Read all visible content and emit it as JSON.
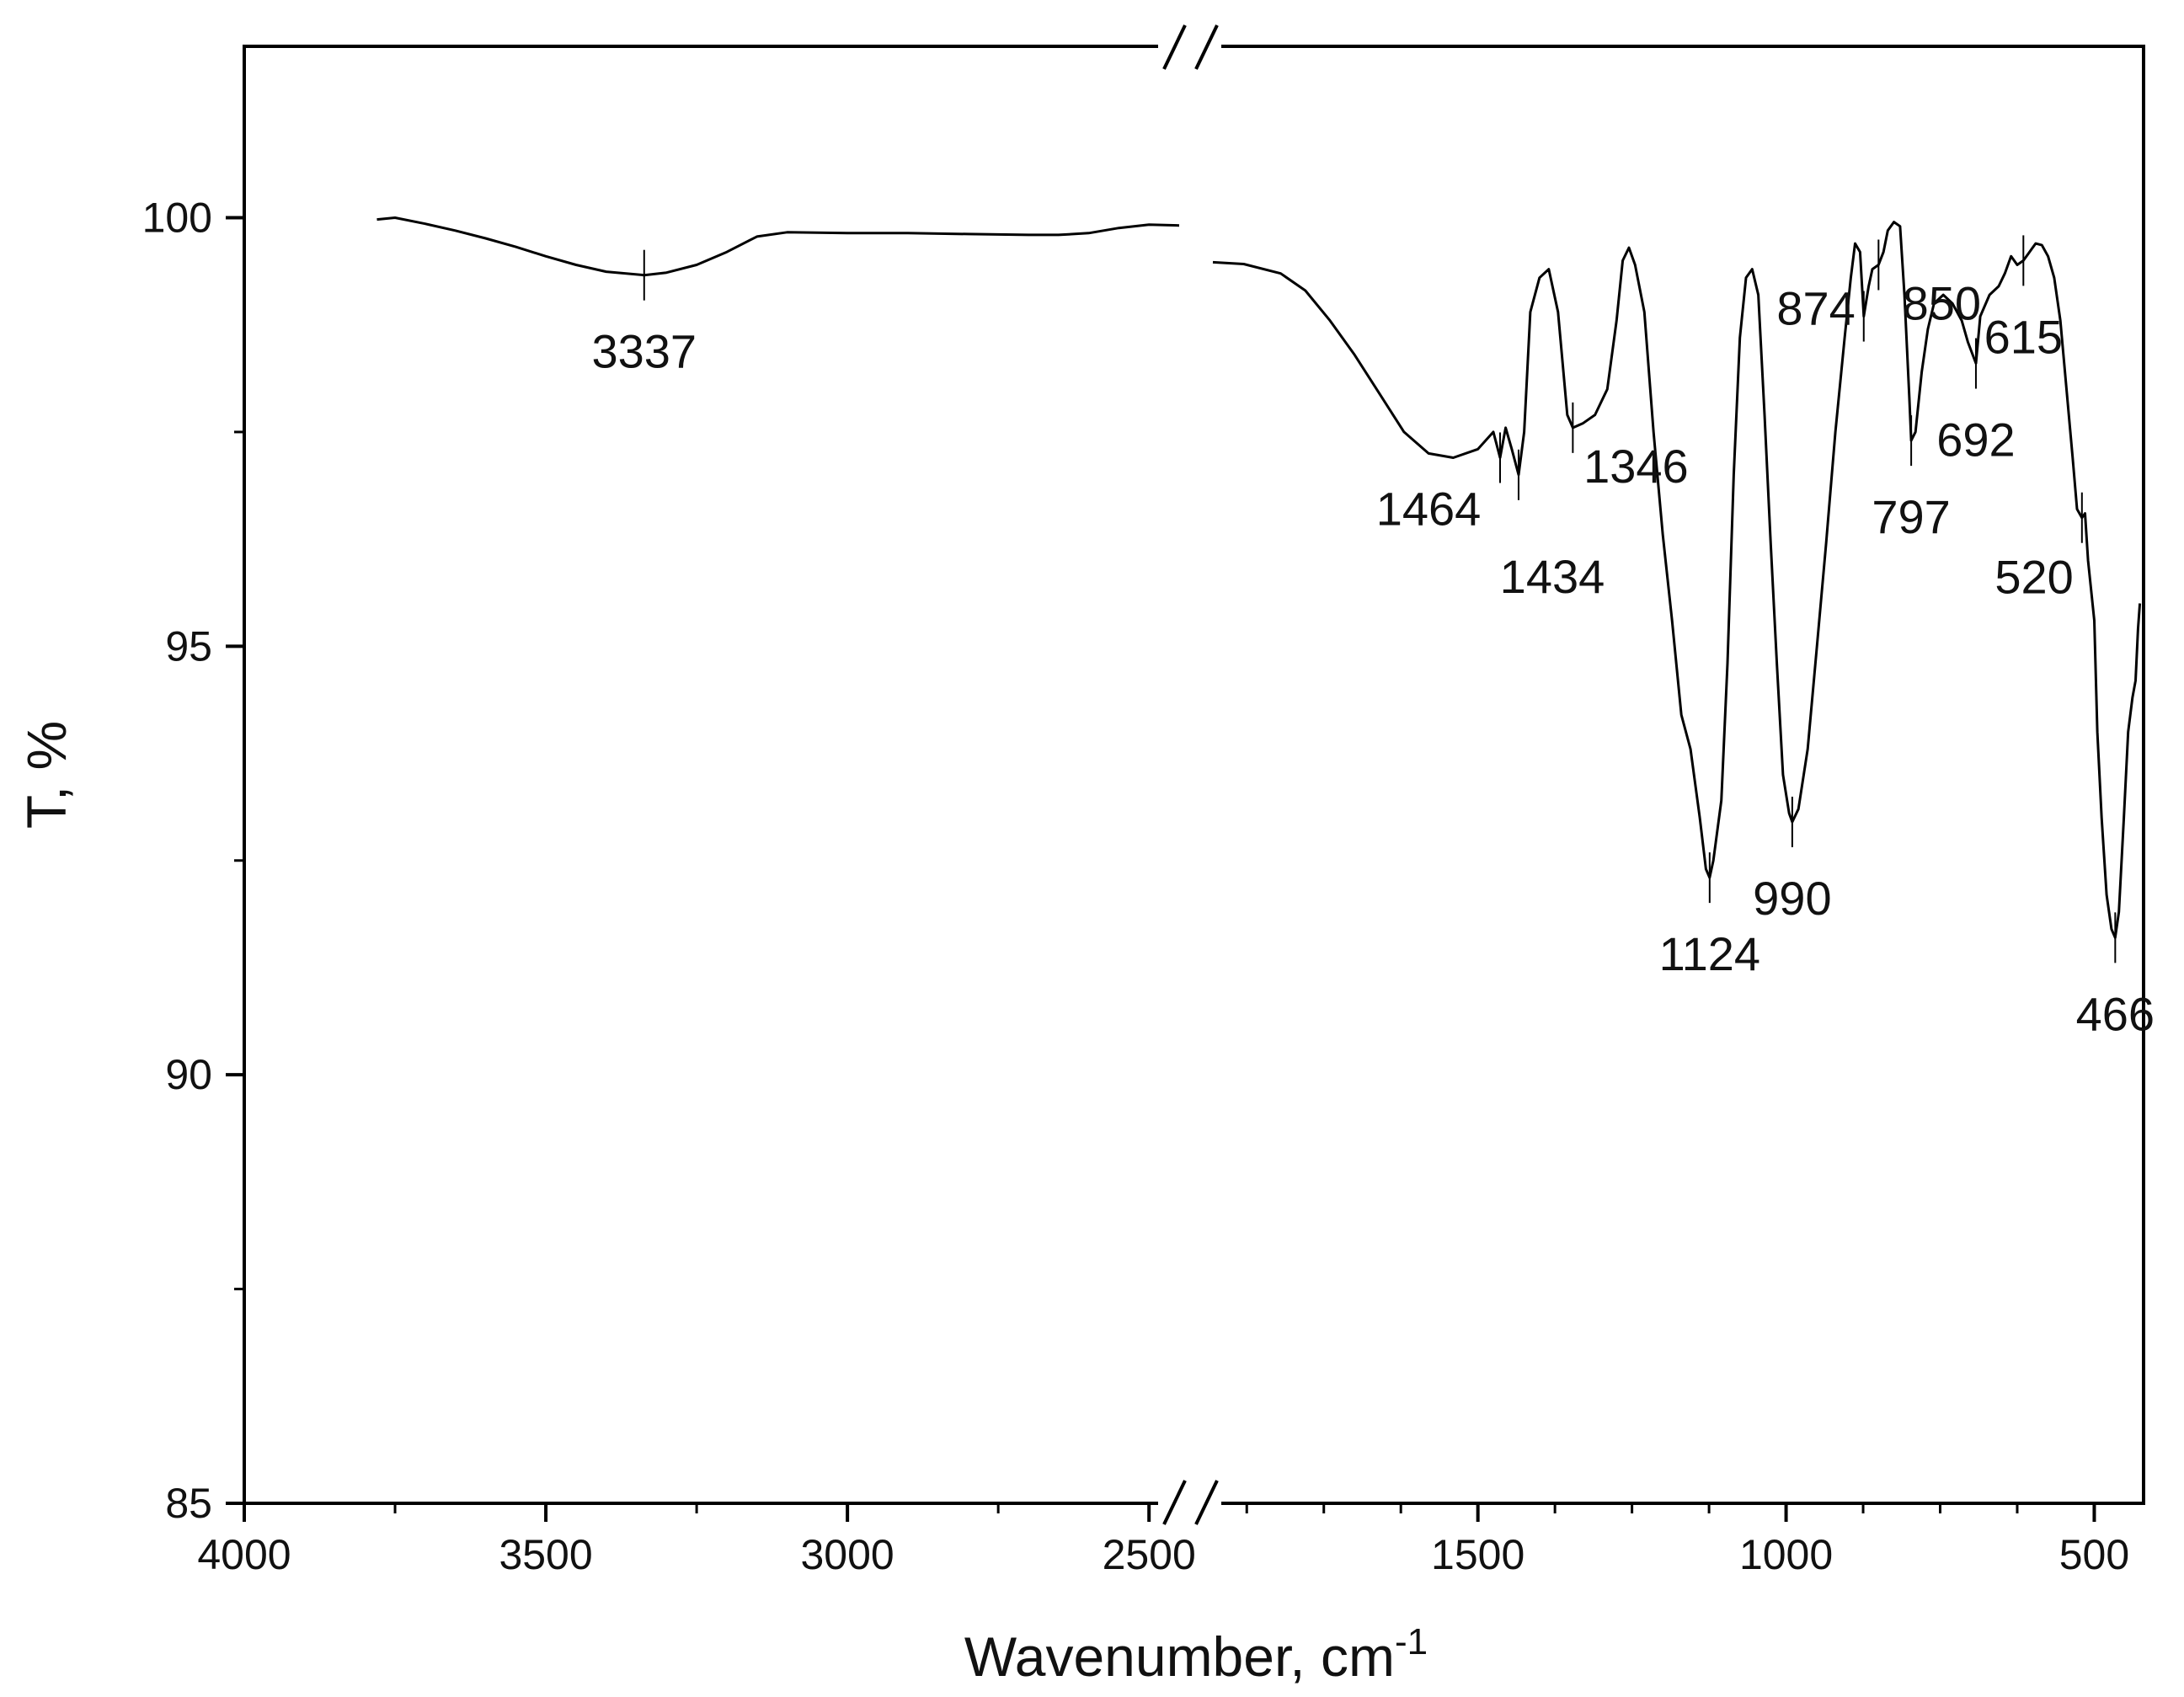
{
  "chart_data": {
    "type": "line",
    "title": "",
    "xlabel": "Wavenumber, cm",
    "xlabel_sup": "-1",
    "ylabel": "T, %",
    "axis_break": "broken x-axis between 2500 and 1800 cm-1",
    "grid": false,
    "legend": "none",
    "line_color": "#000000",
    "ylim": [
      85,
      102
    ],
    "y_ticks": [
      85,
      90,
      95,
      100
    ],
    "x_segments": [
      {
        "range": [
          4000,
          2450
        ],
        "ticks": [
          4000,
          3500,
          3000,
          2500
        ]
      },
      {
        "range": [
          1930,
          420
        ],
        "ticks": [
          1500,
          1000,
          500
        ]
      }
    ],
    "series": [
      {
        "segment": 0,
        "points": [
          [
            3780,
            99.98
          ],
          [
            3750,
            100.0
          ],
          [
            3700,
            99.93
          ],
          [
            3650,
            99.85
          ],
          [
            3600,
            99.76
          ],
          [
            3550,
            99.66
          ],
          [
            3500,
            99.55
          ],
          [
            3450,
            99.45
          ],
          [
            3400,
            99.37
          ],
          [
            3337,
            99.33
          ],
          [
            3300,
            99.36
          ],
          [
            3250,
            99.45
          ],
          [
            3200,
            99.6
          ],
          [
            3150,
            99.78
          ],
          [
            3100,
            99.83
          ],
          [
            3000,
            99.82
          ],
          [
            2900,
            99.82
          ],
          [
            2800,
            99.81
          ],
          [
            2700,
            99.8
          ],
          [
            2650,
            99.8
          ],
          [
            2600,
            99.82
          ],
          [
            2550,
            99.88
          ],
          [
            2500,
            99.92
          ],
          [
            2450,
            99.91
          ]
        ]
      },
      {
        "segment": 1,
        "points": [
          [
            1930,
            99.48
          ],
          [
            1880,
            99.46
          ],
          [
            1820,
            99.35
          ],
          [
            1780,
            99.15
          ],
          [
            1740,
            98.8
          ],
          [
            1700,
            98.4
          ],
          [
            1660,
            97.95
          ],
          [
            1620,
            97.5
          ],
          [
            1580,
            97.25
          ],
          [
            1540,
            97.2
          ],
          [
            1500,
            97.3
          ],
          [
            1475,
            97.5
          ],
          [
            1464,
            97.2
          ],
          [
            1455,
            97.55
          ],
          [
            1445,
            97.3
          ],
          [
            1434,
            97.0
          ],
          [
            1425,
            97.5
          ],
          [
            1415,
            98.9
          ],
          [
            1400,
            99.3
          ],
          [
            1385,
            99.4
          ],
          [
            1370,
            98.9
          ],
          [
            1355,
            97.7
          ],
          [
            1346,
            97.55
          ],
          [
            1330,
            97.6
          ],
          [
            1310,
            97.7
          ],
          [
            1290,
            98.0
          ],
          [
            1275,
            98.8
          ],
          [
            1265,
            99.5
          ],
          [
            1255,
            99.65
          ],
          [
            1245,
            99.45
          ],
          [
            1230,
            98.9
          ],
          [
            1215,
            97.5
          ],
          [
            1200,
            96.3
          ],
          [
            1185,
            95.3
          ],
          [
            1170,
            94.2
          ],
          [
            1155,
            93.8
          ],
          [
            1140,
            93.0
          ],
          [
            1130,
            92.4
          ],
          [
            1124,
            92.3
          ],
          [
            1118,
            92.5
          ],
          [
            1105,
            93.2
          ],
          [
            1095,
            94.8
          ],
          [
            1085,
            97.0
          ],
          [
            1075,
            98.6
          ],
          [
            1065,
            99.3
          ],
          [
            1055,
            99.4
          ],
          [
            1045,
            99.1
          ],
          [
            1035,
            97.7
          ],
          [
            1025,
            96.2
          ],
          [
            1015,
            94.8
          ],
          [
            1005,
            93.5
          ],
          [
            995,
            93.05
          ],
          [
            990,
            92.95
          ],
          [
            980,
            93.1
          ],
          [
            965,
            93.8
          ],
          [
            950,
            95.0
          ],
          [
            935,
            96.2
          ],
          [
            920,
            97.5
          ],
          [
            905,
            98.6
          ],
          [
            895,
            99.3
          ],
          [
            888,
            99.7
          ],
          [
            880,
            99.6
          ],
          [
            874,
            98.85
          ],
          [
            866,
            99.2
          ],
          [
            860,
            99.4
          ],
          [
            850,
            99.45
          ],
          [
            842,
            99.6
          ],
          [
            835,
            99.85
          ],
          [
            825,
            99.95
          ],
          [
            815,
            99.9
          ],
          [
            808,
            99.1
          ],
          [
            800,
            97.9
          ],
          [
            797,
            97.4
          ],
          [
            790,
            97.5
          ],
          [
            780,
            98.2
          ],
          [
            770,
            98.7
          ],
          [
            760,
            99.0
          ],
          [
            745,
            99.1
          ],
          [
            730,
            99.0
          ],
          [
            715,
            98.8
          ],
          [
            705,
            98.55
          ],
          [
            692,
            98.3
          ],
          [
            685,
            98.85
          ],
          [
            670,
            99.1
          ],
          [
            655,
            99.2
          ],
          [
            645,
            99.35
          ],
          [
            635,
            99.55
          ],
          [
            625,
            99.45
          ],
          [
            615,
            99.5
          ],
          [
            605,
            99.6
          ],
          [
            595,
            99.7
          ],
          [
            585,
            99.68
          ],
          [
            575,
            99.55
          ],
          [
            565,
            99.3
          ],
          [
            555,
            98.8
          ],
          [
            545,
            98.0
          ],
          [
            535,
            97.2
          ],
          [
            528,
            96.6
          ],
          [
            520,
            96.5
          ],
          [
            515,
            96.55
          ],
          [
            510,
            96.0
          ],
          [
            500,
            95.3
          ],
          [
            495,
            94.0
          ],
          [
            488,
            93.0
          ],
          [
            480,
            92.1
          ],
          [
            472,
            91.7
          ],
          [
            466,
            91.6
          ],
          [
            460,
            91.9
          ],
          [
            452,
            93.0
          ],
          [
            445,
            94.0
          ],
          [
            438,
            94.4
          ],
          [
            433,
            94.6
          ],
          [
            429,
            95.2
          ],
          [
            426,
            95.5
          ]
        ]
      }
    ],
    "annotations": [
      {
        "text": "3337",
        "segment": 0,
        "x": 3337,
        "y": 99.33,
        "anchor": "below"
      },
      {
        "text": "1464",
        "segment": 1,
        "x": 1464,
        "y": 97.2,
        "anchor": "below-left"
      },
      {
        "text": "1434",
        "segment": 1,
        "x": 1434,
        "y": 97.0,
        "anchor": "far-below"
      },
      {
        "text": "1346",
        "segment": 1,
        "x": 1346,
        "y": 97.55,
        "anchor": "below-right"
      },
      {
        "text": "1124",
        "segment": 1,
        "x": 1124,
        "y": 92.3,
        "anchor": "below"
      },
      {
        "text": "990",
        "segment": 1,
        "x": 990,
        "y": 92.95,
        "anchor": "below"
      },
      {
        "text": "874",
        "segment": 1,
        "x": 874,
        "y": 98.85,
        "anchor": "left"
      },
      {
        "text": "850",
        "segment": 1,
        "x": 850,
        "y": 99.45,
        "anchor": "below-right"
      },
      {
        "text": "797",
        "segment": 1,
        "x": 797,
        "y": 97.4,
        "anchor": "below"
      },
      {
        "text": "692",
        "segment": 1,
        "x": 692,
        "y": 98.3,
        "anchor": "below"
      },
      {
        "text": "615",
        "segment": 1,
        "x": 615,
        "y": 99.5,
        "anchor": "below"
      },
      {
        "text": "520",
        "segment": 1,
        "x": 520,
        "y": 96.5,
        "anchor": "left-below"
      },
      {
        "text": "466",
        "segment": 1,
        "x": 466,
        "y": 91.6,
        "anchor": "below"
      }
    ]
  }
}
